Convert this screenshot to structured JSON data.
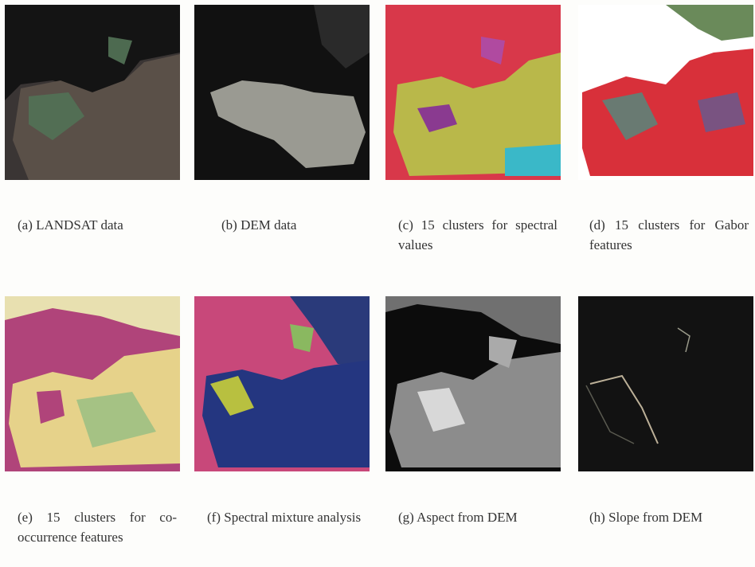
{
  "figure": {
    "panels": [
      {
        "caption": "(a) LANDSAT data"
      },
      {
        "caption": "(b) DEM data"
      },
      {
        "caption": "(c) 15 clusters for spectral values"
      },
      {
        "caption": "(d) 15 clusters for Gabor features"
      },
      {
        "caption": "(e) 15 clusters for co-occurrence features"
      },
      {
        "caption": "(f) Spectral mixture analysis"
      },
      {
        "caption": "(g) Aspect from DEM"
      },
      {
        "caption": "(h) Slope from DEM"
      }
    ]
  }
}
